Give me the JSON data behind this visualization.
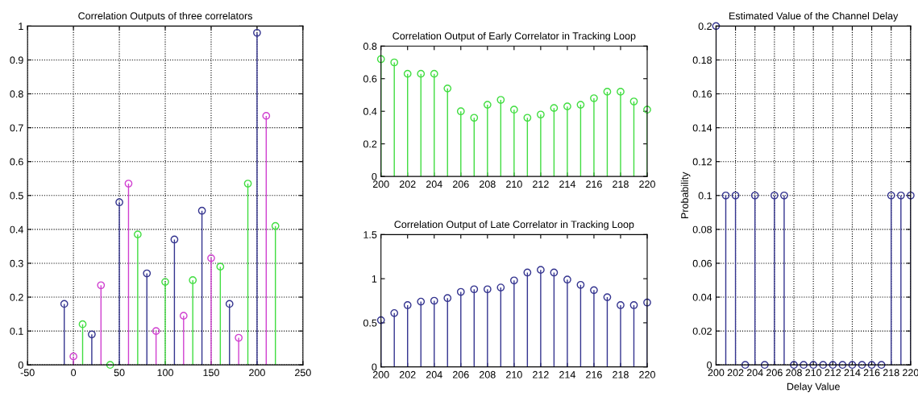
{
  "chart_data": [
    {
      "type": "lollipop",
      "title": "Correlation Outputs of three correlators",
      "marker": "circle",
      "grid": true,
      "xlim": [
        -50,
        250
      ],
      "xticks": [
        -50,
        0,
        50,
        100,
        150,
        200,
        250
      ],
      "ylim": [
        0,
        1
      ],
      "yticks": [
        0,
        0.1,
        0.2,
        0.3,
        0.4,
        0.5,
        0.6,
        0.7,
        0.8,
        0.9,
        1
      ],
      "series": [
        {
          "color": "#34348f",
          "x": [
            -10,
            20,
            50,
            80,
            110,
            140,
            170,
            200
          ],
          "values": [
            0.18,
            0.09,
            0.48,
            0.27,
            0.37,
            0.455,
            0.18,
            0.98
          ]
        },
        {
          "color": "#d040d0",
          "x": [
            0,
            30,
            60,
            90,
            120,
            150,
            180,
            210
          ],
          "values": [
            0.025,
            0.235,
            0.535,
            0.1,
            0.145,
            0.315,
            0.08,
            0.735
          ]
        },
        {
          "color": "#40dd40",
          "x": [
            10,
            40,
            70,
            100,
            130,
            160,
            190,
            220
          ],
          "values": [
            0.12,
            0.0,
            0.385,
            0.245,
            0.25,
            0.29,
            0.535,
            0.41
          ]
        }
      ]
    },
    {
      "type": "lollipop",
      "title": "Correlation Output of Early Correlator in Tracking Loop",
      "marker": "circle",
      "xlim": [
        200,
        220
      ],
      "xticks": [
        200,
        202,
        204,
        206,
        208,
        210,
        212,
        214,
        216,
        218,
        220
      ],
      "ylim": [
        0,
        0.8
      ],
      "yticks": [
        0,
        0.2,
        0.4,
        0.6,
        0.8
      ],
      "series": [
        {
          "color": "#40dd40",
          "x": [
            200,
            201,
            202,
            203,
            204,
            205,
            206,
            207,
            208,
            209,
            210,
            211,
            212,
            213,
            214,
            215,
            216,
            217,
            218,
            219,
            220
          ],
          "values": [
            0.72,
            0.7,
            0.63,
            0.63,
            0.63,
            0.54,
            0.4,
            0.36,
            0.44,
            0.47,
            0.41,
            0.36,
            0.38,
            0.42,
            0.43,
            0.44,
            0.48,
            0.52,
            0.52,
            0.46,
            0.41
          ]
        }
      ]
    },
    {
      "type": "lollipop",
      "title": "Correlation Output of Late Correlator in Tracking Loop",
      "marker": "circle",
      "xlim": [
        200,
        220
      ],
      "xticks": [
        200,
        202,
        204,
        206,
        208,
        210,
        212,
        214,
        216,
        218,
        220
      ],
      "ylim": [
        0,
        1.5
      ],
      "yticks": [
        0,
        0.5,
        1,
        1.5
      ],
      "series": [
        {
          "color": "#34348f",
          "x": [
            200,
            201,
            202,
            203,
            204,
            205,
            206,
            207,
            208,
            209,
            210,
            211,
            212,
            213,
            214,
            215,
            216,
            217,
            218,
            219,
            220
          ],
          "values": [
            0.53,
            0.61,
            0.7,
            0.74,
            0.75,
            0.78,
            0.85,
            0.88,
            0.88,
            0.9,
            0.98,
            1.07,
            1.1,
            1.07,
            0.99,
            0.93,
            0.87,
            0.79,
            0.7,
            0.7,
            0.73
          ]
        }
      ]
    },
    {
      "type": "lollipop",
      "title": "Estimated Value of the Channel Delay",
      "xlabel": "Delay Value",
      "ylabel": "Probability",
      "marker": "circle",
      "grid": true,
      "xlim": [
        200,
        220
      ],
      "xticks": [
        200,
        202,
        204,
        206,
        208,
        210,
        212,
        214,
        216,
        218,
        220
      ],
      "ylim": [
        0,
        0.2
      ],
      "yticks": [
        0,
        0.02,
        0.04,
        0.06,
        0.08,
        0.1,
        0.12,
        0.14,
        0.16,
        0.18,
        0.2
      ],
      "series": [
        {
          "color": "#34348f",
          "x": [
            200,
            201,
            202,
            203,
            204,
            205,
            206,
            207,
            208,
            209,
            210,
            211,
            212,
            213,
            214,
            215,
            216,
            217,
            218,
            219,
            220
          ],
          "values": [
            0.2,
            0.1,
            0.1,
            0,
            0.1,
            0,
            0.1,
            0.1,
            0,
            0,
            0,
            0,
            0,
            0,
            0,
            0,
            0,
            0,
            0.1,
            0.1,
            0.1
          ]
        }
      ]
    }
  ]
}
